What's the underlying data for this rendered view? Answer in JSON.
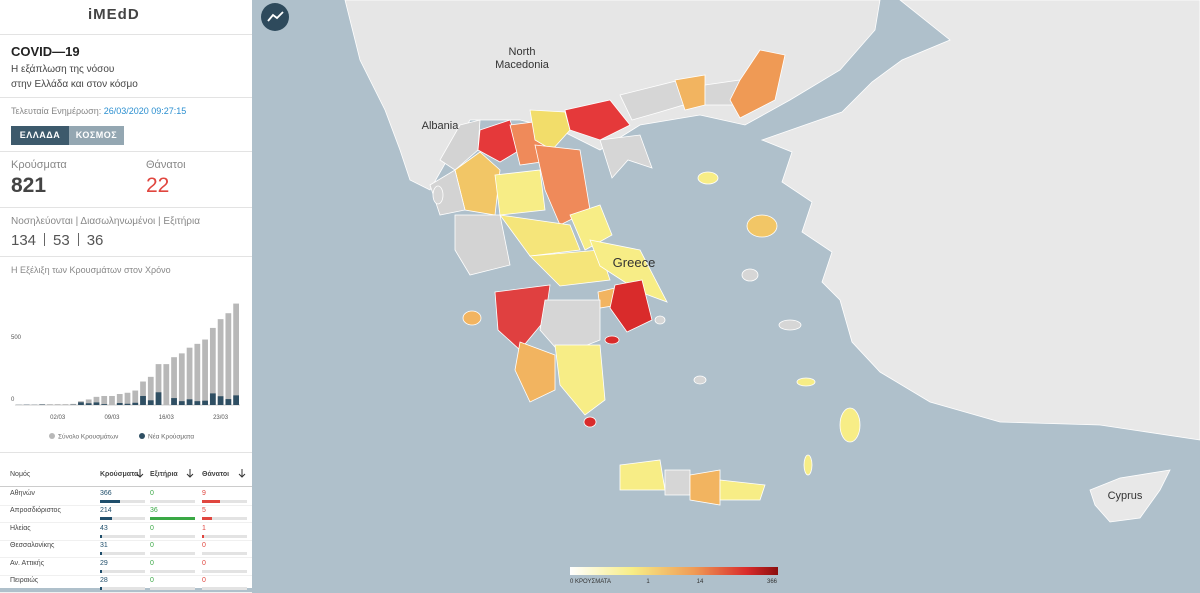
{
  "header": {
    "logo": "iMEdD",
    "title": "COVID—19",
    "subtitle_1": "Η εξάπλωση της νόσου",
    "subtitle_2": "στην Ελλάδα και στον κόσμο",
    "update_label": "Τελευταία Ενημέρωση:",
    "update_time": "26/03/2020 09:27:15",
    "tabs": [
      "ΕΛΛΑΔΑ",
      "ΚΟΣΜΟΣ"
    ]
  },
  "stats": {
    "cases_label": "Κρούσματα",
    "cases": 821,
    "deaths_label": "Θάνατοι",
    "deaths": 22,
    "hospital_label": "Νοσηλεύονται | Διασωληνωμένοι | Εξιτήρια",
    "hospitalized": 134,
    "intubated": 53,
    "discharged": 36
  },
  "chart_data": {
    "type": "bar",
    "title": "Η Εξέλιξη των Κρουσμάτων στον Χρόνο",
    "categories": [
      null,
      null,
      null,
      null,
      null,
      "02/03",
      null,
      null,
      null,
      null,
      null,
      null,
      "09/03",
      null,
      null,
      null,
      null,
      null,
      null,
      "16/03",
      null,
      null,
      null,
      null,
      null,
      null,
      "23/03",
      null,
      null
    ],
    "series": [
      {
        "name": "Σύνολο Κρουσμάτων",
        "color": "#b8b8b8",
        "values": [
          1,
          3,
          4,
          7,
          7,
          7,
          7,
          9,
          31,
          45,
          66,
          73,
          73,
          89,
          99,
          117,
          190,
          228,
          331,
          331,
          387,
          418,
          464,
          495,
          530,
          624,
          695,
          743,
          821
        ]
      },
      {
        "name": "Νέα Κρούσματα",
        "color": "#2f4f63",
        "values": [
          1,
          2,
          1,
          3,
          0,
          0,
          0,
          2,
          22,
          14,
          21,
          7,
          0,
          16,
          10,
          18,
          73,
          38,
          103,
          0,
          56,
          31,
          46,
          31,
          35,
          94,
          71,
          48,
          78
        ]
      }
    ],
    "ylim": [
      0,
      850
    ],
    "yticks": [
      0,
      500
    ],
    "grid": false
  },
  "table": {
    "columns": [
      "Νομός",
      "Κρούσματα",
      "Εξιτήρια",
      "Θάνατοι"
    ],
    "rows": [
      [
        "Αθηνών",
        366,
        0,
        9
      ],
      [
        "Απροσδιόριστος",
        214,
        36,
        5
      ],
      [
        "Ηλείας",
        43,
        0,
        1
      ],
      [
        "Θεσσαλονίκης",
        31,
        0,
        0
      ],
      [
        "Αν. Αττικής",
        29,
        0,
        0
      ],
      [
        "Πειραιώς",
        28,
        0,
        0
      ]
    ]
  },
  "map": {
    "labels": [
      "North",
      "Macedonia",
      "Albania",
      "Greece",
      "Cyprus"
    ],
    "legend": {
      "min_label": "0 ΚΡΟΥΣΜΑΤΑ",
      "ticks": [
        "1",
        "14",
        "366"
      ]
    }
  }
}
